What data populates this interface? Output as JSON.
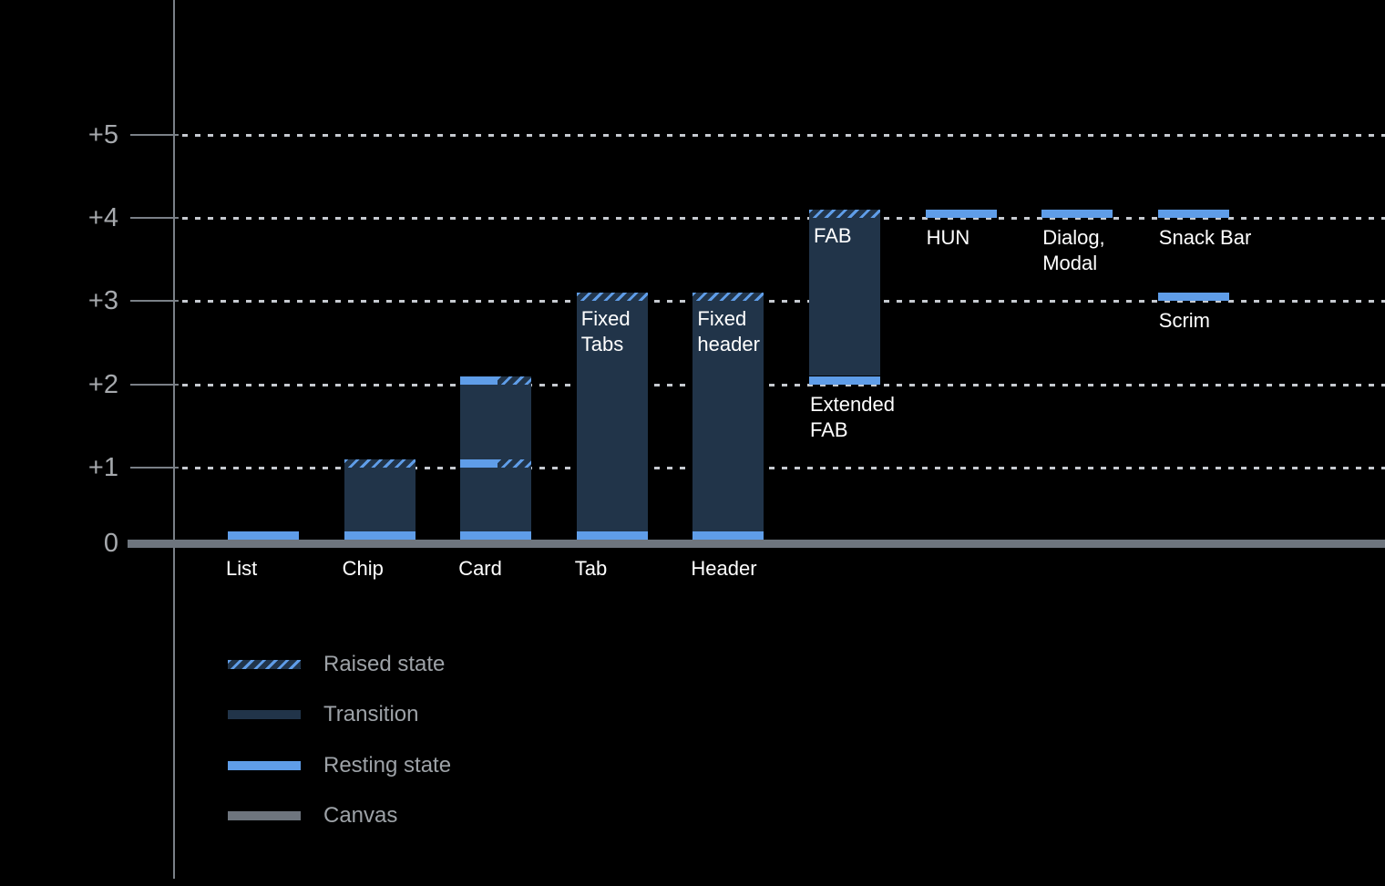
{
  "chart_data": {
    "type": "bar",
    "description": "Elevation diagram of UI components: resting and raised elevation states above the canvas",
    "ylim": [
      0,
      5.5
    ],
    "grid": "dotted-horizontal",
    "yticks": [
      {
        "label": "+5",
        "value": 5
      },
      {
        "label": "+4",
        "value": 4
      },
      {
        "label": "+3",
        "value": 3
      },
      {
        "label": "+2",
        "value": 2
      },
      {
        "label": "+1",
        "value": 1
      },
      {
        "label": "0",
        "value": 0
      }
    ],
    "bars": [
      {
        "name": "list",
        "column": 0,
        "axis_label": "List",
        "resting_elevation": 0,
        "raised_elevation": null,
        "segments": [
          {
            "kind": "resting",
            "from": 0.13,
            "to": 0.23
          }
        ]
      },
      {
        "name": "chip",
        "column": 1,
        "axis_label": "Chip",
        "resting_elevation": 0,
        "raised_elevation": 1,
        "segments": [
          {
            "kind": "resting",
            "from": 0.13,
            "to": 0.23
          },
          {
            "kind": "transition",
            "from": 0.23,
            "to": 1.0
          },
          {
            "kind": "raised",
            "from": 1.0,
            "to": 1.1
          }
        ]
      },
      {
        "name": "card",
        "column": 2,
        "axis_label": "Card",
        "resting_elevation": 0,
        "raised_elevation": 2,
        "segments": [
          {
            "kind": "resting",
            "from": 0.13,
            "to": 0.23
          },
          {
            "kind": "transition",
            "from": 0.23,
            "to": 1.0
          },
          {
            "kind": "split",
            "from": 1.0,
            "to": 1.1
          },
          {
            "kind": "transition",
            "from": 1.1,
            "to": 2.0
          },
          {
            "kind": "split",
            "from": 2.0,
            "to": 2.1
          }
        ]
      },
      {
        "name": "tab",
        "column": 3,
        "axis_label": "Tab",
        "inner_label": [
          "Fixed",
          "Tabs"
        ],
        "resting_elevation": 0,
        "raised_elevation": 3,
        "segments": [
          {
            "kind": "resting",
            "from": 0.13,
            "to": 0.23
          },
          {
            "kind": "transition",
            "from": 0.23,
            "to": 3.0
          },
          {
            "kind": "raised",
            "from": 3.0,
            "to": 3.1
          }
        ]
      },
      {
        "name": "header",
        "column": 4,
        "axis_label": "Header",
        "inner_label": [
          "Fixed",
          "header"
        ],
        "resting_elevation": 0,
        "raised_elevation": 3,
        "segments": [
          {
            "kind": "resting",
            "from": 0.13,
            "to": 0.23
          },
          {
            "kind": "transition",
            "from": 0.23,
            "to": 3.0
          },
          {
            "kind": "raised",
            "from": 3.0,
            "to": 3.1
          }
        ]
      },
      {
        "name": "extended-fab",
        "column": 5,
        "inner_label": [
          "FAB"
        ],
        "below_label": [
          "Extended",
          "FAB"
        ],
        "resting_elevation": 2,
        "raised_elevation": 4,
        "segments": [
          {
            "kind": "resting",
            "from": 2.0,
            "to": 2.1
          },
          {
            "kind": "transition",
            "from": 2.1,
            "to": 4.0
          },
          {
            "kind": "raised",
            "from": 4.0,
            "to": 4.1
          }
        ]
      },
      {
        "name": "hun",
        "column": 6,
        "below_label": [
          "HUN"
        ],
        "resting_elevation": 4,
        "raised_elevation": null,
        "segments": [
          {
            "kind": "resting",
            "from": 4.0,
            "to": 4.1
          }
        ]
      },
      {
        "name": "dialog-modal",
        "column": 7,
        "below_label": [
          "Dialog,",
          "Modal"
        ],
        "resting_elevation": 4,
        "raised_elevation": null,
        "segments": [
          {
            "kind": "resting",
            "from": 4.0,
            "to": 4.1
          }
        ]
      },
      {
        "name": "snack-bar",
        "column": 8,
        "below_label": [
          "Snack Bar"
        ],
        "resting_elevation": 4,
        "raised_elevation": null,
        "segments": [
          {
            "kind": "resting",
            "from": 4.0,
            "to": 4.1
          }
        ]
      },
      {
        "name": "scrim",
        "column": 8,
        "below_label": [
          "Scrim"
        ],
        "resting_elevation": 3,
        "raised_elevation": null,
        "segments": [
          {
            "kind": "resting",
            "from": 3.0,
            "to": 3.1
          }
        ]
      }
    ],
    "legend_position": "bottom-left",
    "legend": [
      {
        "label": "Raised state",
        "style": "hatched"
      },
      {
        "label": "Transition",
        "style": "solid",
        "color": "#213449"
      },
      {
        "label": "Resting state",
        "style": "solid",
        "color": "#5f9de8"
      },
      {
        "label": "Canvas",
        "style": "solid",
        "color": "#6e757e"
      }
    ]
  },
  "colors": {
    "background": "#000000",
    "resting": "#5f9de8",
    "transition": "#213449",
    "raised_stripe": "#5f9de8",
    "raised_background": "#213449",
    "canvas": "#6e757e",
    "axis": "#7a8087",
    "grid": "#c6cad0",
    "tick_label": "#a6a9ad",
    "component_label": "#ffffff",
    "legend_label": "#9da2a7"
  }
}
